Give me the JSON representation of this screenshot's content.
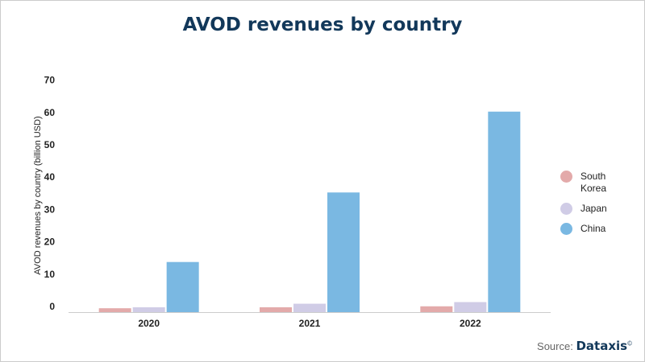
{
  "chart_data": {
    "type": "bar",
    "title": "AVOD revenues by country",
    "ylabel": "AVOD revenues by country (billion USD)",
    "xlabel": "",
    "categories": [
      "2020",
      "2021",
      "2022"
    ],
    "ylim": [
      0,
      70
    ],
    "yticks": [
      0,
      10,
      20,
      30,
      40,
      50,
      60,
      70
    ],
    "grid": false,
    "legend_position": "right",
    "series": [
      {
        "name": "South Korea",
        "color": "#e3aaaa",
        "values": [
          1.2,
          1.5,
          1.8
        ]
      },
      {
        "name": "Japan",
        "color": "#d0cce6",
        "values": [
          1.5,
          2.6,
          3.1
        ]
      },
      {
        "name": "China",
        "color": "#7ab8e2",
        "values": [
          15.5,
          37,
          62
        ]
      }
    ]
  },
  "source": {
    "label": "Source:",
    "brand": "Dataxis",
    "mark": "©"
  }
}
